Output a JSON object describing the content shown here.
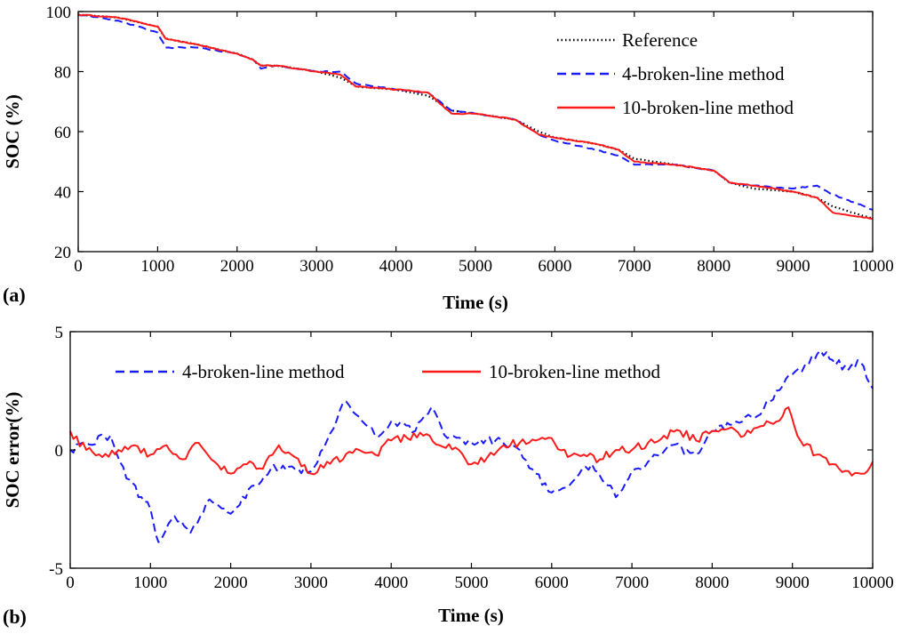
{
  "colors": {
    "reference": "#000000",
    "four_line": "#1a1aff",
    "ten_line": "#ff1a1a"
  },
  "chart_data": [
    {
      "type": "line",
      "panel_label": "(a)",
      "xlabel": "Time (s)",
      "ylabel": "SOC (%)",
      "xlim": [
        0,
        10000
      ],
      "ylim": [
        20,
        100
      ],
      "xticks": [
        0,
        1000,
        2000,
        3000,
        4000,
        5000,
        6000,
        7000,
        8000,
        9000,
        10000
      ],
      "yticks": [
        20,
        40,
        60,
        80,
        100
      ],
      "xtick_labels": [
        "0",
        "1000",
        "2000",
        "3000",
        "4000",
        "5000",
        "6000",
        "7000",
        "8000",
        "9000",
        "10000"
      ],
      "ytick_labels": [
        "20",
        "40",
        "60",
        "80",
        "100"
      ],
      "grid": false,
      "legend_position": "top-right",
      "series": [
        {
          "name": "Reference",
          "style": "dotted",
          "x": [
            0,
            500,
            1000,
            1100,
            1500,
            2000,
            2200,
            2300,
            2500,
            3000,
            3300,
            3500,
            4000,
            4400,
            4700,
            5000,
            5500,
            5800,
            6000,
            6500,
            6800,
            7000,
            7500,
            8000,
            8200,
            8500,
            9000,
            9300,
            9500,
            10000
          ],
          "y": [
            99,
            98,
            95,
            91,
            89,
            86,
            84,
            82,
            82,
            80,
            78,
            75,
            74,
            72,
            67,
            66,
            64,
            60,
            58,
            56,
            54,
            51,
            49,
            47,
            43,
            41,
            40,
            38,
            35,
            31
          ]
        },
        {
          "name": "4-broken-line method",
          "style": "dashed",
          "x": [
            0,
            500,
            1000,
            1100,
            1500,
            2000,
            2200,
            2300,
            2500,
            3000,
            3300,
            3500,
            4000,
            4400,
            4700,
            5000,
            5500,
            5800,
            6000,
            6500,
            6800,
            7000,
            7500,
            8000,
            8200,
            8500,
            9000,
            9300,
            9500,
            10000
          ],
          "y": [
            99,
            97,
            93,
            88,
            88,
            86,
            84,
            81,
            82,
            80,
            80,
            76,
            74,
            73,
            67,
            66,
            64,
            59,
            57,
            54,
            52,
            49,
            49,
            47,
            43,
            42,
            41,
            42,
            39,
            34
          ]
        },
        {
          "name": "10-broken-line method",
          "style": "solid",
          "x": [
            0,
            500,
            1000,
            1100,
            1500,
            2000,
            2200,
            2300,
            2500,
            3000,
            3300,
            3500,
            4000,
            4400,
            4700,
            5000,
            5500,
            5800,
            6000,
            6500,
            6800,
            7000,
            7500,
            8000,
            8200,
            8500,
            9000,
            9300,
            9500,
            10000
          ],
          "y": [
            99,
            98,
            95,
            91,
            89,
            86,
            84,
            82,
            82,
            80,
            79,
            75,
            74,
            73,
            66,
            66,
            64,
            59,
            58,
            56,
            54,
            50,
            49,
            47,
            43,
            42,
            40,
            38,
            33,
            31
          ]
        }
      ]
    },
    {
      "type": "line",
      "panel_label": "(b)",
      "xlabel": "Time (s)",
      "ylabel": "SOC error(%)",
      "xlim": [
        0,
        10000
      ],
      "ylim": [
        -5,
        5
      ],
      "xticks": [
        0,
        1000,
        2000,
        3000,
        4000,
        5000,
        6000,
        7000,
        8000,
        9000,
        10000
      ],
      "yticks": [
        -5,
        0,
        5
      ],
      "xtick_labels": [
        "0",
        "1000",
        "2000",
        "3000",
        "4000",
        "5000",
        "6000",
        "7000",
        "8000",
        "9000",
        "10000"
      ],
      "ytick_labels": [
        "-5",
        "0",
        "5"
      ],
      "grid": false,
      "legend_position": "top",
      "series": [
        {
          "name": "4-broken-line method",
          "style": "dashed",
          "x": [
            0,
            200,
            500,
            700,
            1000,
            1100,
            1300,
            1500,
            1700,
            2000,
            2300,
            2500,
            2800,
            3000,
            3200,
            3400,
            3600,
            3800,
            4000,
            4300,
            4500,
            4700,
            5000,
            5300,
            5600,
            5800,
            6000,
            6100,
            6300,
            6500,
            6700,
            6800,
            7000,
            7200,
            7500,
            7800,
            8000,
            8300,
            8600,
            8800,
            9000,
            9200,
            9350,
            9500,
            9700,
            9850,
            10000
          ],
          "y": [
            0,
            0.3,
            0.6,
            -1.2,
            -2.5,
            -3.9,
            -2.8,
            -3.5,
            -2.2,
            -2.7,
            -1.5,
            -0.8,
            -0.8,
            -0.9,
            0.4,
            2.0,
            1.4,
            0.6,
            1.2,
            0.8,
            1.8,
            0.5,
            0.3,
            0.4,
            0.0,
            -1.0,
            -1.8,
            -1.7,
            -1.2,
            -0.6,
            -1.5,
            -2.0,
            -0.9,
            -0.5,
            0.2,
            -0.2,
            0.8,
            1.2,
            1.5,
            2.5,
            3.2,
            3.6,
            4.2,
            3.8,
            3.4,
            3.7,
            2.6
          ]
        },
        {
          "name": "10-broken-line method",
          "style": "solid",
          "x": [
            0,
            200,
            400,
            600,
            800,
            1000,
            1200,
            1400,
            1600,
            1800,
            2000,
            2200,
            2400,
            2600,
            2800,
            3000,
            3200,
            3400,
            3600,
            3800,
            4000,
            4200,
            4400,
            4600,
            4800,
            5000,
            5200,
            5400,
            5600,
            5800,
            6000,
            6200,
            6400,
            6600,
            6800,
            7000,
            7200,
            7400,
            7600,
            7800,
            8000,
            8200,
            8400,
            8600,
            8800,
            8950,
            9100,
            9300,
            9500,
            9700,
            9900,
            10000
          ],
          "y": [
            0.8,
            0.0,
            -0.3,
            0.0,
            0.2,
            -0.2,
            0.2,
            -0.4,
            0.3,
            -0.5,
            -1.0,
            -0.6,
            -0.8,
            0.2,
            -0.3,
            -1.0,
            -0.5,
            -0.4,
            0.0,
            -0.2,
            0.4,
            0.5,
            0.6,
            0.2,
            0.1,
            -0.6,
            -0.3,
            0.2,
            0.3,
            0.4,
            0.5,
            -0.3,
            -0.2,
            -0.4,
            0.0,
            0.0,
            0.3,
            0.6,
            0.8,
            0.4,
            0.8,
            0.9,
            0.6,
            1.0,
            1.2,
            1.8,
            0.4,
            -0.2,
            -0.6,
            -0.9,
            -1.0,
            -0.5
          ]
        }
      ]
    }
  ]
}
